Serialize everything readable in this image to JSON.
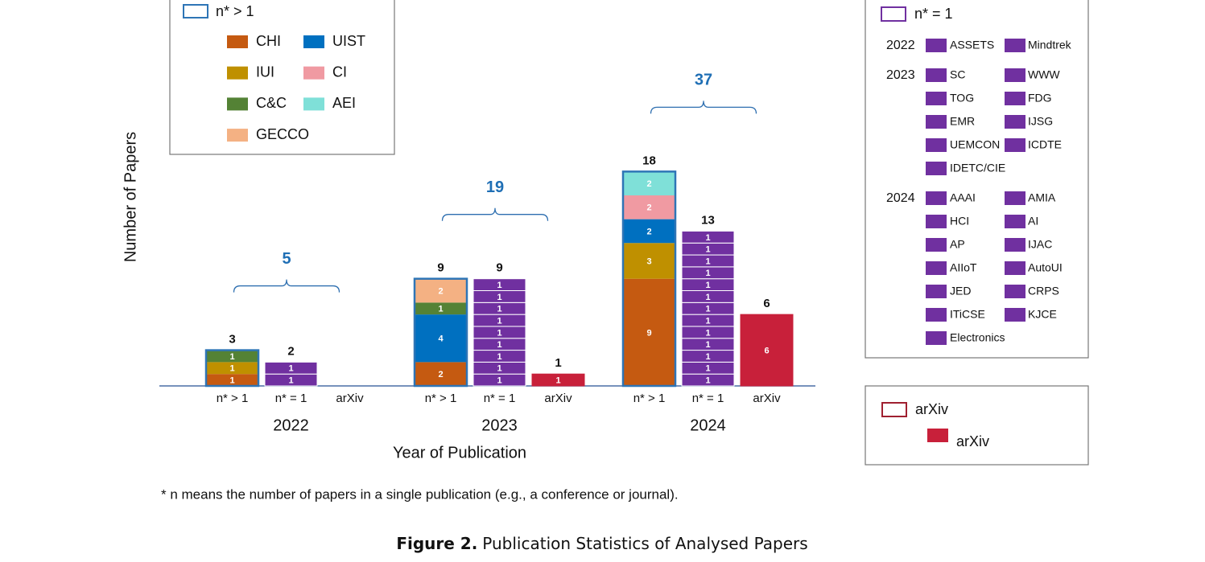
{
  "chart_data": {
    "type": "stacked-grouped-bar",
    "y_label": "Number of Papers",
    "x_label": "Year of Publication",
    "ylim": [
      0,
      32
    ],
    "years": [
      {
        "year": "2022",
        "total": 5,
        "groups": [
          {
            "name": "n* > 1",
            "total": 3,
            "outline": "#2e75b6",
            "segments": [
              {
                "venue": "CHI",
                "value": 1
              },
              {
                "venue": "IUI",
                "value": 1
              },
              {
                "venue": "C&C",
                "value": 1
              }
            ]
          },
          {
            "name": "n* = 1",
            "total": 2,
            "color": "#7030a0",
            "segments": [
              {
                "value": 1
              },
              {
                "value": 1
              }
            ]
          },
          {
            "name": "arXiv",
            "color": "#c8203a",
            "segments": [
              {
                "value": 0
              }
            ]
          }
        ]
      },
      {
        "year": "2023",
        "total": 19,
        "groups": [
          {
            "name": "n* > 1",
            "total": 9,
            "outline": "#2e75b6",
            "segments": [
              {
                "venue": "CHI",
                "value": 2
              },
              {
                "venue": "UIST",
                "value": 4
              },
              {
                "venue": "C&C",
                "value": 1
              },
              {
                "venue": "GECCO",
                "value": 2
              }
            ]
          },
          {
            "name": "n* = 1",
            "total": 9,
            "color": "#7030a0",
            "segments": [
              {
                "value": 1
              },
              {
                "value": 1
              },
              {
                "value": 1
              },
              {
                "value": 1
              },
              {
                "value": 1
              },
              {
                "value": 1
              },
              {
                "value": 1
              },
              {
                "value": 1
              },
              {
                "value": 1
              }
            ]
          },
          {
            "name": "arXiv",
            "total": 1,
            "color": "#c8203a",
            "segments": [
              {
                "value": 1
              }
            ]
          }
        ]
      },
      {
        "year": "2024",
        "total": 37,
        "groups": [
          {
            "name": "n* > 1",
            "total": 18,
            "outline": "#2e75b6",
            "segments": [
              {
                "venue": "CHI",
                "value": 9
              },
              {
                "venue": "IUI",
                "value": 3
              },
              {
                "venue": "UIST",
                "value": 2
              },
              {
                "venue": "CI",
                "value": 2
              },
              {
                "venue": "AEI",
                "value": 2
              }
            ]
          },
          {
            "name": "n* = 1",
            "total": 13,
            "color": "#7030a0",
            "segments": [
              {
                "value": 1
              },
              {
                "value": 1
              },
              {
                "value": 1
              },
              {
                "value": 1
              },
              {
                "value": 1
              },
              {
                "value": 1
              },
              {
                "value": 1
              },
              {
                "value": 1
              },
              {
                "value": 1
              },
              {
                "value": 1
              },
              {
                "value": 1
              },
              {
                "value": 1
              },
              {
                "value": 1
              }
            ]
          },
          {
            "name": "arXiv",
            "total": 6,
            "color": "#c8203a",
            "segments": [
              {
                "value": 6
              }
            ]
          }
        ]
      }
    ],
    "legends": [
      {
        "title": "n* > 1",
        "outline": "#2e75b6",
        "items": [
          {
            "name": "CHI",
            "color": "#c55a11"
          },
          {
            "name": "UIST",
            "color": "#0070c0"
          },
          {
            "name": "IUI",
            "color": "#bf9000"
          },
          {
            "name": "CI",
            "color": "#f09aa2"
          },
          {
            "name": "C&C",
            "color": "#548235"
          },
          {
            "name": "AEI",
            "color": "#7fe0d8"
          },
          {
            "name": "GECCO",
            "color": "#f4b183"
          }
        ]
      },
      {
        "title": "n* = 1",
        "outline": "#7030a0",
        "color": "#7030a0",
        "groups": [
          {
            "year": "2022",
            "venues": [
              "ASSETS",
              "Mindtrek"
            ]
          },
          {
            "year": "2023",
            "venues": [
              "SC",
              "WWW",
              "TOG",
              "FDG",
              "EMR",
              "IJSG",
              "UEMCON",
              "ICDTE",
              "IDETC/CIE"
            ]
          },
          {
            "year": "2024",
            "venues": [
              "AAAI",
              "AMIA",
              "HCI",
              "AI",
              "AP",
              "IJAC",
              "AIIoT",
              "AutoUI",
              "JED",
              "CRPS",
              "ITiCSE",
              "KJCE",
              "Electronics"
            ]
          }
        ]
      },
      {
        "title": "arXiv",
        "outline": "#a02030",
        "items": [
          {
            "name": "arXiv",
            "color": "#c8203a"
          }
        ]
      }
    ],
    "footnote": "* n means the number of papers in a single publication (e.g., a conference or journal).",
    "caption": {
      "label": "Figure 2.",
      "text": "Publication Statistics of Analysed Papers"
    }
  }
}
